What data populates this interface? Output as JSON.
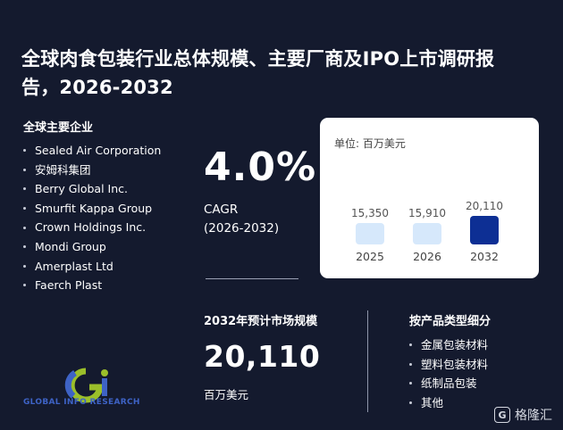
{
  "title": "全球肉食包装行业总体规模、主要厂商及IPO上市调研报告，2026-2032",
  "companies": {
    "heading": "全球主要企业",
    "items": [
      "Sealed Air Corporation",
      "安姆科集团",
      "Berry Global Inc.",
      "Smurfit Kappa Group",
      "Crown Holdings Inc.",
      "Mondi Group",
      "Amerplast Ltd",
      "Faerch Plast"
    ]
  },
  "cagr": {
    "value": "4.0%",
    "label": "CAGR",
    "period": "(2026-2032)"
  },
  "chart_data": {
    "type": "bar",
    "unit_label": "单位: 百万美元",
    "categories": [
      "2025",
      "2026",
      "2032"
    ],
    "values": [
      15350,
      15910,
      20110
    ],
    "value_labels": [
      "15,350",
      "15,910",
      "20,110"
    ],
    "colors": [
      "#d6e8fb",
      "#d6e8fb",
      "#0d2f94"
    ]
  },
  "market": {
    "heading": "2032年预计市场规模",
    "value": "20,110",
    "unit": "百万美元"
  },
  "product_types": {
    "heading": "按产品类型细分",
    "items": [
      "金属包装材料",
      "塑料包装材料",
      "纸制品包装",
      "其他"
    ]
  },
  "logo": {
    "text": "GLOBAL INFO RESEARCH",
    "mark": "Gi"
  },
  "brand": {
    "name": "格隆汇",
    "icon": "brand-g-icon"
  }
}
